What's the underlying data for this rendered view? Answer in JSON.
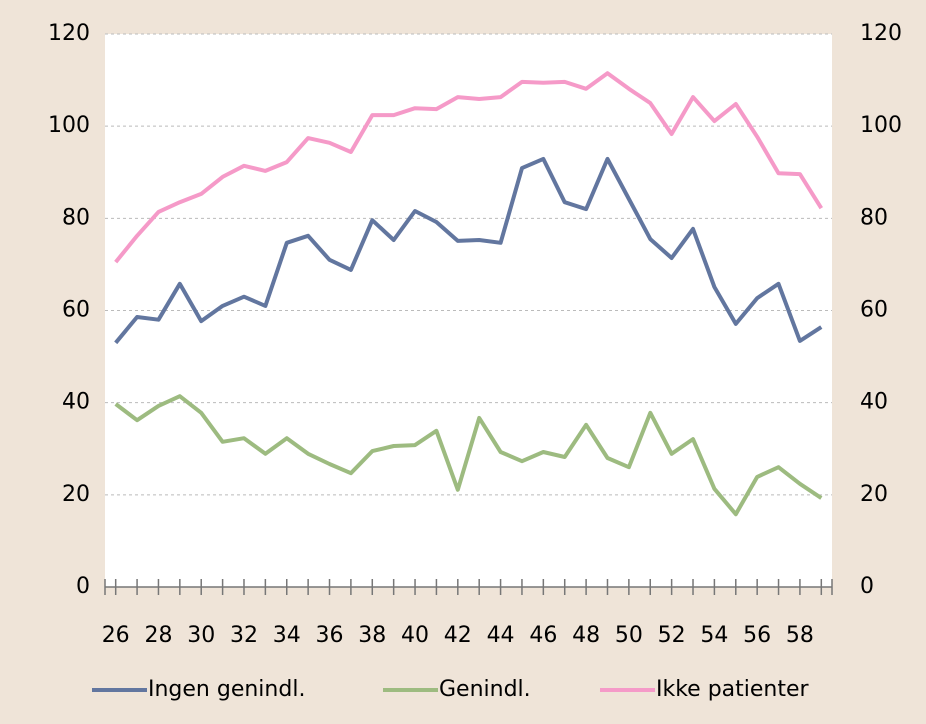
{
  "chart_data": {
    "type": "line",
    "x": [
      26,
      27,
      28,
      29,
      30,
      31,
      32,
      33,
      34,
      35,
      36,
      37,
      38,
      39,
      40,
      41,
      42,
      43,
      44,
      45,
      46,
      47,
      48,
      49,
      50,
      51,
      52,
      53,
      54,
      55,
      56,
      57,
      58,
      59
    ],
    "xlim": [
      25.5,
      59.5
    ],
    "xticks": [
      26,
      28,
      30,
      32,
      34,
      36,
      38,
      40,
      42,
      44,
      46,
      48,
      50,
      52,
      54,
      56,
      58
    ],
    "ylim": [
      0,
      120
    ],
    "yticks": [
      0,
      20,
      40,
      60,
      80,
      100,
      120
    ],
    "y2lim": [
      0,
      120
    ],
    "y2ticks": [
      0,
      20,
      40,
      60,
      80,
      100,
      120
    ],
    "grid": true,
    "legend": "bottom",
    "series": [
      {
        "name": "Ingen genindl.",
        "color": "#62769f",
        "values": [
          53,
          58.6,
          58,
          65.8,
          57.7,
          61,
          63,
          61,
          74.7,
          76.2,
          71,
          68.8,
          79.6,
          75.3,
          81.6,
          79.2,
          75.1,
          75.3,
          74.7,
          90.9,
          92.9,
          83.5,
          82,
          92.9,
          84.2,
          75.5,
          71.4,
          77.7,
          65.1,
          57.1,
          62.7,
          65.8,
          53.4,
          56.4
        ]
      },
      {
        "name": "Genindl.",
        "color": "#9dbb80",
        "values": [
          39.7,
          36.2,
          39.3,
          41.4,
          37.8,
          31.5,
          32.3,
          28.9,
          32.3,
          28.9,
          26.7,
          24.7,
          29.5,
          30.6,
          30.8,
          33.9,
          21.1,
          36.7,
          29.3,
          27.3,
          29.3,
          28.2,
          35.2,
          28,
          26,
          37.8,
          28.9,
          32.1,
          21.3,
          15.8,
          23.9,
          26,
          22.4,
          19.3
        ]
      },
      {
        "name": "Ikke patienter",
        "color": "#f59ac8",
        "values": [
          70.5,
          76.2,
          81.4,
          83.5,
          85.3,
          89,
          91.4,
          90.3,
          92.2,
          97.4,
          96.4,
          94.4,
          102.4,
          102.4,
          103.9,
          103.7,
          106.3,
          105.9,
          106.3,
          109.6,
          109.4,
          109.6,
          108.1,
          111.5,
          108.1,
          105,
          98.3,
          106.3,
          101.1,
          104.8,
          97.7,
          89.8,
          89.6,
          82.2
        ]
      }
    ]
  }
}
